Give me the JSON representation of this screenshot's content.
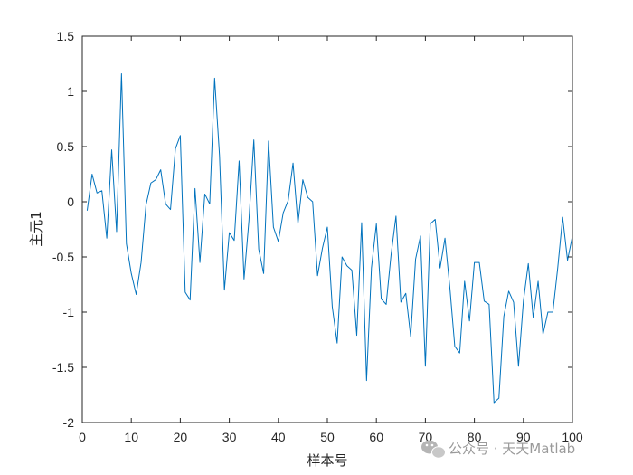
{
  "chart_data": {
    "type": "line",
    "xlabel": "样本号",
    "ylabel": "主元1",
    "xlim": [
      0,
      100
    ],
    "ylim": [
      -2,
      1.5
    ],
    "xticks": [
      0,
      10,
      20,
      30,
      40,
      50,
      60,
      70,
      80,
      90,
      100
    ],
    "yticks": [
      -2,
      -1.5,
      -1,
      -0.5,
      0,
      0.5,
      1,
      1.5
    ],
    "xtick_labels": [
      "0",
      "10",
      "20",
      "30",
      "40",
      "50",
      "60",
      "70",
      "80",
      "90",
      "100"
    ],
    "ytick_labels": [
      "-2",
      "-1.5",
      "-1",
      "-0.5",
      "0",
      "0.5",
      "1",
      "1.5"
    ],
    "grid": false,
    "line_color": "#0072BD",
    "series": [
      {
        "x": [
          1,
          2,
          3,
          4,
          5,
          6,
          7,
          8,
          9,
          10,
          11,
          12,
          13,
          14,
          15,
          16,
          17,
          18,
          19,
          20,
          21,
          22,
          23,
          24,
          25,
          26,
          27,
          28,
          29,
          30,
          31,
          32,
          33,
          34,
          35,
          36,
          37,
          38,
          39,
          40,
          41,
          42,
          43,
          44,
          45,
          46,
          47,
          48,
          49,
          50,
          51,
          52,
          53,
          54,
          55,
          56,
          57,
          58,
          59,
          60,
          61,
          62,
          63,
          64,
          65,
          66,
          67,
          68,
          69,
          70,
          71,
          72,
          73,
          74,
          75,
          76,
          77,
          78,
          79,
          80,
          81,
          82,
          83,
          84,
          85,
          86,
          87,
          88,
          89,
          90,
          91,
          92,
          93,
          94,
          95,
          96,
          97,
          98,
          99,
          100
        ],
        "values": [
          -0.08,
          0.25,
          0.08,
          0.1,
          -0.33,
          0.47,
          -0.27,
          1.16,
          -0.38,
          -0.65,
          -0.84,
          -0.55,
          -0.03,
          0.17,
          0.2,
          0.29,
          -0.02,
          -0.07,
          0.48,
          0.6,
          -0.82,
          -0.89,
          0.12,
          -0.55,
          0.07,
          -0.02,
          1.12,
          0.42,
          -0.8,
          -0.28,
          -0.35,
          0.37,
          -0.7,
          -0.17,
          0.56,
          -0.43,
          -0.65,
          0.55,
          -0.23,
          -0.36,
          -0.1,
          0.01,
          0.35,
          -0.2,
          0.2,
          0.04,
          0.0,
          -0.67,
          -0.42,
          -0.23,
          -0.95,
          -1.28,
          -0.5,
          -0.58,
          -0.62,
          -1.21,
          -0.19,
          -1.62,
          -0.6,
          -0.2,
          -0.88,
          -0.93,
          -0.48,
          -0.13,
          -0.91,
          -0.83,
          -1.22,
          -0.52,
          -0.31,
          -1.49,
          -0.2,
          -0.16,
          -0.6,
          -0.33,
          -0.78,
          -1.31,
          -1.37,
          -0.72,
          -1.08,
          -0.55,
          -0.55,
          -0.9,
          -0.93,
          -1.82,
          -1.78,
          -1.04,
          -0.81,
          -0.91,
          -1.49,
          -0.9,
          -0.56,
          -1.05,
          -0.72,
          -1.2,
          -1.0,
          -1.0,
          -0.6,
          -0.14,
          -0.53,
          -0.31
        ]
      }
    ]
  },
  "watermark": {
    "text": "公众号 · 天天Matlab",
    "icon": "wechat-icon"
  }
}
